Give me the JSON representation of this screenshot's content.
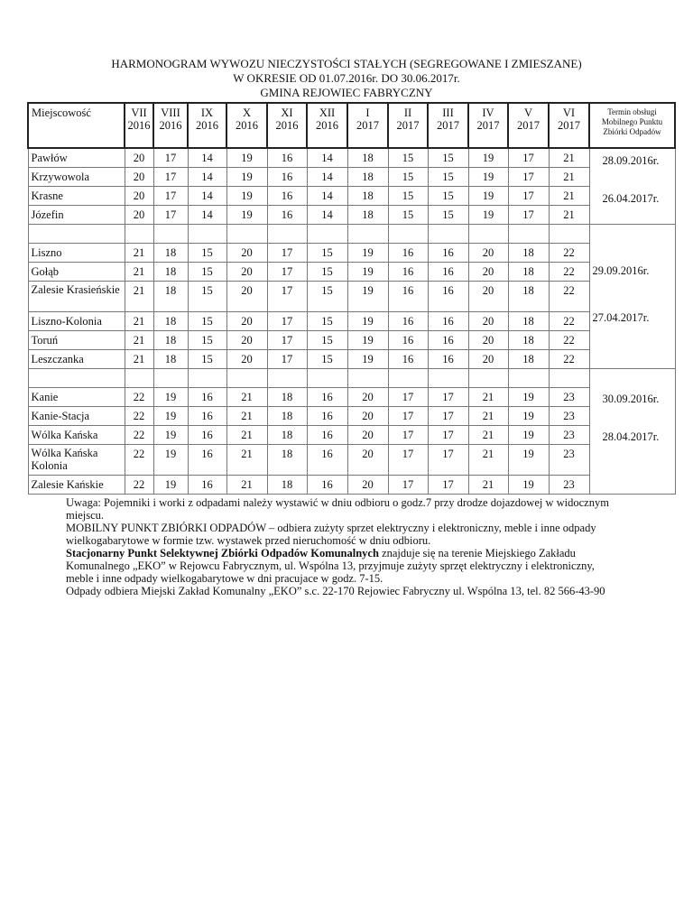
{
  "title": {
    "line1": "HARMONOGRAM WYWOZU NIECZYSTOŚCI STAŁYCH (SEGREGOWANE I ZMIESZANE)",
    "line2": "W OKRESIE OD 01.07.2016r. DO 30.06.2017r.",
    "line3": "GMINA REJOWIEC FABRYCZNY"
  },
  "table": {
    "location_header": "Miejscowość",
    "termin_header": "Termin obsługi Mobilnego Punktu Zbiórki Odpadów",
    "months": [
      {
        "m": "VII",
        "y": "2016"
      },
      {
        "m": "VIII",
        "y": "2016"
      },
      {
        "m": "IX",
        "y": "2016"
      },
      {
        "m": "X",
        "y": "2016"
      },
      {
        "m": "XI",
        "y": "2016"
      },
      {
        "m": "XII",
        "y": "2016"
      },
      {
        "m": "I",
        "y": "2017"
      },
      {
        "m": "II",
        "y": "2017"
      },
      {
        "m": "III",
        "y": "2017"
      },
      {
        "m": "IV",
        "y": "2017"
      },
      {
        "m": "V",
        "y": "2017"
      },
      {
        "m": "VI",
        "y": "2017"
      }
    ],
    "groups": [
      {
        "blank_row_before": false,
        "dates": [
          "28.09.2016r.",
          "26.04.2017r."
        ],
        "rows": [
          {
            "name": "Pawłów",
            "values": [
              20,
              17,
              14,
              19,
              16,
              14,
              18,
              15,
              15,
              19,
              17,
              21
            ]
          },
          {
            "name": "Krzywowola",
            "values": [
              20,
              17,
              14,
              19,
              16,
              14,
              18,
              15,
              15,
              19,
              17,
              21
            ]
          },
          {
            "name": "Krasne",
            "values": [
              20,
              17,
              14,
              19,
              16,
              14,
              18,
              15,
              15,
              19,
              17,
              21
            ]
          },
          {
            "name": "Józefin",
            "values": [
              20,
              17,
              14,
              19,
              16,
              14,
              18,
              15,
              15,
              19,
              17,
              21
            ]
          }
        ]
      },
      {
        "blank_row_before": true,
        "dates": [
          "29.09.2016r.",
          "27.04.2017r."
        ],
        "rows": [
          {
            "name": "Liszno",
            "values": [
              21,
              18,
              15,
              20,
              17,
              15,
              19,
              16,
              16,
              20,
              18,
              22
            ]
          },
          {
            "name": "Gołąb",
            "values": [
              21,
              18,
              15,
              20,
              17,
              15,
              19,
              16,
              16,
              20,
              18,
              22
            ]
          },
          {
            "name": "Zalesie Krasieńskie",
            "values": [
              21,
              18,
              15,
              20,
              17,
              15,
              19,
              16,
              16,
              20,
              18,
              22
            ]
          },
          {
            "name": "Liszno-Kolonia",
            "values": [
              21,
              18,
              15,
              20,
              17,
              15,
              19,
              16,
              16,
              20,
              18,
              22
            ]
          },
          {
            "name": "Toruń",
            "values": [
              21,
              18,
              15,
              20,
              17,
              15,
              19,
              16,
              16,
              20,
              18,
              22
            ]
          },
          {
            "name": "Leszczanka",
            "values": [
              21,
              18,
              15,
              20,
              17,
              15,
              19,
              16,
              16,
              20,
              18,
              22
            ]
          }
        ]
      },
      {
        "blank_row_before": true,
        "dates": [
          "30.09.2016r.",
          "28.04.2017r."
        ],
        "rows": [
          {
            "name": "Kanie",
            "values": [
              22,
              19,
              16,
              21,
              18,
              16,
              20,
              17,
              17,
              21,
              19,
              23
            ]
          },
          {
            "name": "Kanie-Stacja",
            "values": [
              22,
              19,
              16,
              21,
              18,
              16,
              20,
              17,
              17,
              21,
              19,
              23
            ]
          },
          {
            "name": "Wólka Kańska",
            "values": [
              22,
              19,
              16,
              21,
              18,
              16,
              20,
              17,
              17,
              21,
              19,
              23
            ]
          },
          {
            "name": "Wólka Kańska Kolonia",
            "values": [
              22,
              19,
              16,
              21,
              18,
              16,
              20,
              17,
              17,
              21,
              19,
              23
            ]
          },
          {
            "name": "Zalesie Kańskie",
            "values": [
              22,
              19,
              16,
              21,
              18,
              16,
              20,
              17,
              17,
              21,
              19,
              23
            ]
          }
        ]
      }
    ]
  },
  "notes": {
    "line1": "Uwaga: Pojemniki i worki z odpadami należy wystawić w dniu odbioru o godz.7 przy drodze dojazdowej w widocznym",
    "line2": "miejscu.",
    "line3": "MOBILNY PUNKT ZBIÓRKI ODPADÓW – odbiera zużyty sprzet elektryczny i elektroniczny, meble i inne odpady",
    "line4": "wielkogabarytowe w formie tzw. wystawek przed nieruchomość w dniu odbioru.",
    "line5_bold": "Stacjonarny Punkt Selektywnej Zbiórki Odpadów Komunalnych",
    "line5_rest": " znajduje się na terenie Miejskiego Zakładu",
    "line6": "Komunalnego „EKO” w Rejowcu Fabrycznym, ul. Wspólna 13, przyjmuje zużyty sprzęt elektryczny i elektroniczny,",
    "line7": "meble i inne odpady wielkogabarytowe w dni pracujace w godz. 7-15.",
    "line8": "Odpady odbiera Miejski Zakład Komunalny „EKO” s.c. 22-170 Rejowiec Fabryczny ul. Wspólna 13, tel. 82 566-43-90"
  }
}
